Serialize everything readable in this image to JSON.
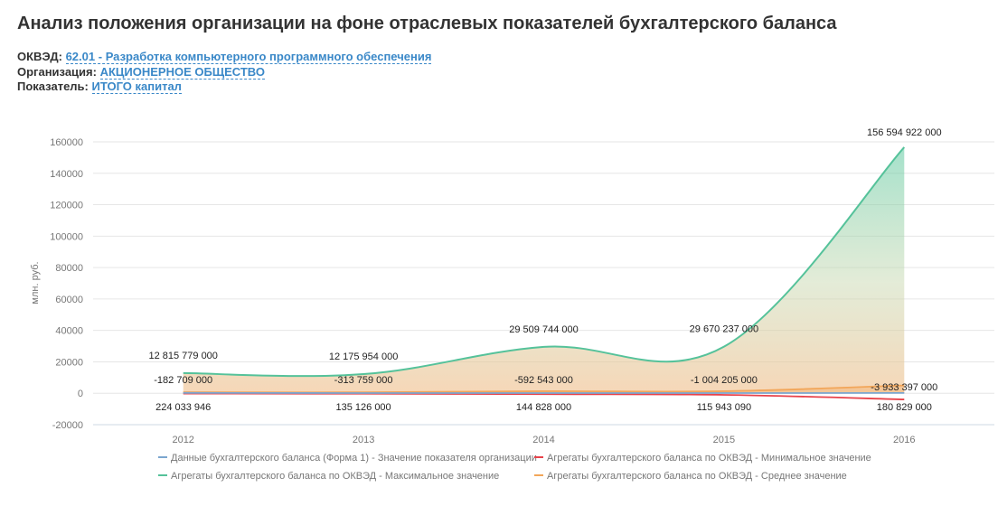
{
  "title": "Анализ положения организации на фоне отраслевых показателей бухгалтерского баланса",
  "meta": {
    "okved_label": "ОКВЭД:",
    "okved_code": "62.01",
    "okved_sep": " - ",
    "okved_name": "Разработка компьютерного программного обеспечения",
    "org_label": "Организация:",
    "org_value": "АКЦИОНЕРНОЕ ОБЩЕСТВО",
    "indicator_label": "Показатель:",
    "indicator_value": "ИТОГО капитал"
  },
  "chart_data": {
    "type": "area",
    "ylabel": "млн. руб.",
    "ylim": [
      -20000,
      160000
    ],
    "yticks": [
      "-20000",
      "0",
      "20000",
      "40000",
      "60000",
      "80000",
      "100000",
      "120000",
      "140000",
      "160000"
    ],
    "categories": [
      "2012",
      "2013",
      "2014",
      "2015",
      "2016"
    ],
    "series": [
      {
        "name": "Данные бухгалтерского баланса (Форма 1) - Значение показателя организации",
        "color": "#7ba6cf",
        "values": [
          224.033946,
          135.126,
          144.828,
          115.94309,
          180.829
        ],
        "labels": [
          "224 033 946",
          "135 126 000",
          "144 828 000",
          "115 943 090",
          "180 829 000"
        ]
      },
      {
        "name": "Агрегаты бухгалтерского баланса по ОКВЭД - Минимальное значение",
        "color": "#e8424a",
        "values": [
          -182.709,
          -313.759,
          -592.543,
          -1004.205,
          -3933.397
        ],
        "labels": [
          "-182 709 000",
          "-313 759 000",
          "-592 543 000",
          "-1 004 205 000",
          "-3 933 397 000"
        ]
      },
      {
        "name": "Агрегаты бухгалтерского баланса по ОКВЭД - Максимальное значение",
        "color": "#55c29a",
        "values": [
          12815.779,
          12175.954,
          29509.744,
          29670.237,
          156594.922
        ],
        "labels": [
          "12 815 779 000",
          "12 175 954 000",
          "29 509 744 000",
          "29 670 237 000",
          "156 594 922 000"
        ]
      },
      {
        "name": "Агрегаты бухгалтерского баланса по ОКВЭД - Среднее значение",
        "color": "#f2a65a",
        "values": [
          700,
          600,
          1300,
          1300,
          5000
        ],
        "labels": []
      }
    ]
  }
}
